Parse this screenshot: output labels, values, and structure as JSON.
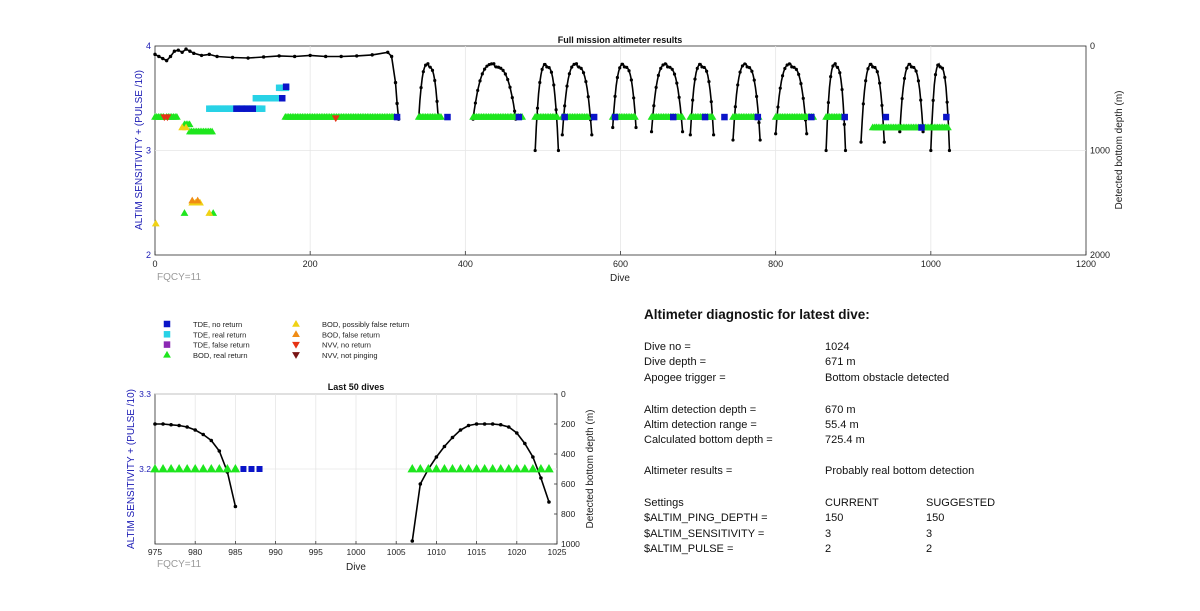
{
  "top_chart": {
    "title": "Full mission altimeter results",
    "xlabel": "Dive",
    "ylabel_left": "ALTIM SENSITIVITY + (PULSE /10)",
    "ylabel_right": "Detected bottom depth (m)",
    "note": "FQCY=11",
    "x_ticks": [
      "0",
      "200",
      "400",
      "600",
      "800",
      "1000",
      "1200"
    ],
    "y_left_ticks": [
      "2",
      "3",
      "4"
    ],
    "y_right_ticks": [
      "0",
      "1000",
      "2000"
    ]
  },
  "bottom_chart": {
    "title": "Last 50 dives",
    "xlabel": "Dive",
    "ylabel_left": "ALTIM SENSITIVITY + (PULSE /10)",
    "ylabel_right": "Detected bottom depth (m)",
    "note": "FQCY=11",
    "x_ticks": [
      "975",
      "980",
      "985",
      "990",
      "995",
      "1000",
      "1005",
      "1010",
      "1015",
      "1020",
      "1025"
    ],
    "y_left_ticks": [
      "3.2",
      "3.3"
    ],
    "y_right_ticks": [
      "0",
      "200",
      "400",
      "600",
      "800",
      "1000"
    ]
  },
  "legend": [
    {
      "label": "TDE, no return",
      "shape": "square",
      "color": "#0a14c8"
    },
    {
      "label": "TDE, real return",
      "shape": "square",
      "color": "#28d2e6"
    },
    {
      "label": "TDE, false return",
      "shape": "square",
      "color": "#8c28b4"
    },
    {
      "label": "BOD, real return",
      "shape": "triangle-up",
      "color": "#1ee61e"
    },
    {
      "label": "BOD, possibly false return",
      "shape": "triangle-up",
      "color": "#f0d214"
    },
    {
      "label": "BOD, false return",
      "shape": "triangle-up",
      "color": "#f08c14"
    },
    {
      "label": "NVV, no return",
      "shape": "triangle-down",
      "color": "#e63214"
    },
    {
      "label": "NVV, not pinging",
      "shape": "triangle-down",
      "color": "#781414"
    }
  ],
  "diagnostic": {
    "title": "Altimeter diagnostic for latest dive:",
    "dive_no_label": "Dive no =",
    "dive_no": "1024",
    "dive_depth_label": "Dive depth =",
    "dive_depth": "671 m",
    "apogee_label": "Apogee trigger =",
    "apogee": "Bottom obstacle detected",
    "det_depth_label": "Altim detection depth =",
    "det_depth": "670 m",
    "det_range_label": "Altim detection range =",
    "det_range": "55.4 m",
    "calc_label": "Calculated bottom depth =",
    "calc": "725.4 m",
    "results_label": "Altimeter results =",
    "results": "Probably real bottom detection",
    "settings_label": "Settings",
    "current_label": "CURRENT",
    "suggested_label": "SUGGESTED",
    "ping_label": "$ALTIM_PING_DEPTH =",
    "ping_cur": "150",
    "ping_sug": "150",
    "sens_label": "$ALTIM_SENSITIVITY =",
    "sens_cur": "3",
    "sens_sug": "3",
    "pulse_label": "$ALTIM_PULSE =",
    "pulse_cur": "2",
    "pulse_sug": "2"
  },
  "chart_data": [
    {
      "type": "scatter",
      "title": "Full mission altimeter results",
      "xlabel": "Dive",
      "ylabel": "ALTIM SENSITIVITY + (PULSE /10)",
      "ylabel_right": "Detected bottom depth (m)",
      "xlim": [
        0,
        1200
      ],
      "ylim": [
        2,
        4
      ],
      "ylim_right": [
        2000,
        0
      ],
      "grid": true,
      "marker_series": [
        {
          "name": "BOD, real return",
          "segments": [
            [
              0,
              12,
              3.32
            ],
            [
              15,
              30,
              3.32
            ],
            [
              38,
              45,
              3.25
            ],
            [
              45,
              75,
              3.18
            ],
            [
              168,
              310,
              3.32
            ],
            [
              340,
              370,
              3.32
            ],
            [
              410,
              460,
              3.32
            ],
            [
              460,
              475,
              3.32
            ],
            [
              490,
              520,
              3.32
            ],
            [
              525,
              560,
              3.32
            ],
            [
              590,
              620,
              3.32
            ],
            [
              640,
              680,
              3.32
            ],
            [
              690,
              720,
              3.32
            ],
            [
              745,
              780,
              3.32
            ],
            [
              800,
              850,
              3.32
            ],
            [
              865,
              885,
              3.32
            ],
            [
              925,
              930,
              3.22
            ],
            [
              930,
              960,
              3.22
            ],
            [
              960,
              1000,
              3.22
            ],
            [
              1000,
              1024,
              3.22
            ]
          ],
          "points": [
            [
              38,
              2.4
            ],
            [
              75,
              2.4
            ]
          ]
        },
        {
          "name": "BOD, possibly false return",
          "points": [
            [
              1,
              2.3
            ],
            [
              35,
              3.22
            ],
            [
              40,
              3.22
            ],
            [
              48,
              2.5
            ],
            [
              52,
              2.5
            ],
            [
              58,
              2.5
            ],
            [
              70,
              2.4
            ]
          ]
        },
        {
          "name": "BOD, false return",
          "points": [
            [
              48,
              2.52
            ],
            [
              55,
              2.52
            ]
          ]
        },
        {
          "name": "NVV, no return",
          "points": [
            [
              12,
              3.32
            ],
            [
              16,
              3.32
            ],
            [
              233,
              3.31
            ]
          ]
        },
        {
          "name": "TDE, real return",
          "segments": [
            [
              70,
              140,
              3.4
            ],
            [
              130,
              160,
              3.5
            ],
            [
              160,
              170,
              3.6
            ]
          ]
        },
        {
          "name": "TDE, no return",
          "points": [
            [
              105,
              3.4
            ],
            [
              112,
              3.4
            ],
            [
              118,
              3.4
            ],
            [
              126,
              3.4
            ],
            [
              164,
              3.5
            ],
            [
              169,
              3.61
            ],
            [
              312,
              3.32
            ],
            [
              377,
              3.32
            ],
            [
              469,
              3.32
            ],
            [
              528,
              3.32
            ],
            [
              566,
              3.32
            ],
            [
              593,
              3.32
            ],
            [
              668,
              3.32
            ],
            [
              709,
              3.32
            ],
            [
              734,
              3.32
            ],
            [
              777,
              3.32
            ],
            [
              846,
              3.32
            ],
            [
              889,
              3.32
            ],
            [
              942,
              3.32
            ],
            [
              988,
              3.22
            ],
            [
              1020,
              3.32
            ]
          ]
        }
      ],
      "depth_series": {
        "name": "Detected bottom depth (m)",
        "continuous": [
          [
            0,
            80
          ],
          [
            5,
            100
          ],
          [
            10,
            120
          ],
          [
            15,
            140
          ],
          [
            20,
            100
          ],
          [
            25,
            50
          ],
          [
            30,
            40
          ],
          [
            35,
            60
          ],
          [
            40,
            30
          ],
          [
            45,
            50
          ],
          [
            50,
            70
          ],
          [
            60,
            90
          ],
          [
            70,
            80
          ],
          [
            80,
            100
          ],
          [
            100,
            110
          ],
          [
            120,
            115
          ],
          [
            140,
            105
          ],
          [
            160,
            95
          ],
          [
            180,
            100
          ],
          [
            200,
            90
          ],
          [
            220,
            100
          ],
          [
            240,
            100
          ],
          [
            260,
            95
          ],
          [
            280,
            85
          ],
          [
            300,
            60
          ],
          [
            305,
            100
          ],
          [
            310,
            350
          ],
          [
            312,
            550
          ],
          [
            314,
            700
          ]
        ],
        "arches": [
          [
            340,
            365,
            680
          ],
          [
            410,
            465,
            700
          ],
          [
            490,
            520,
            1000
          ],
          [
            525,
            563,
            850
          ],
          [
            590,
            620,
            780
          ],
          [
            640,
            680,
            820
          ],
          [
            690,
            720,
            850
          ],
          [
            745,
            780,
            900
          ],
          [
            800,
            840,
            840
          ],
          [
            865,
            890,
            1000
          ],
          [
            910,
            940,
            920
          ],
          [
            960,
            990,
            820
          ],
          [
            1000,
            1024,
            1000
          ]
        ]
      }
    },
    {
      "type": "scatter",
      "title": "Last 50 dives",
      "xlabel": "Dive",
      "ylabel": "ALTIM SENSITIVITY + (PULSE /10)",
      "ylabel_right": "Detected bottom depth (m)",
      "xlim": [
        975,
        1025
      ],
      "ylim": [
        3.1,
        3.3
      ],
      "ylim_right": [
        1000,
        0
      ],
      "grid": true,
      "bod_real_return_x": [
        975,
        976,
        977,
        978,
        979,
        980,
        981,
        982,
        983,
        984,
        985,
        1007,
        1008,
        1009,
        1010,
        1011,
        1012,
        1013,
        1014,
        1015,
        1016,
        1017,
        1018,
        1019,
        1020,
        1021,
        1022,
        1023,
        1024
      ],
      "bod_real_return_y": 3.2,
      "tde_no_return_x": [
        986,
        987,
        988
      ],
      "tde_no_return_y": 3.2,
      "depth_x": [
        975,
        976,
        977,
        978,
        979,
        980,
        981,
        982,
        983,
        984,
        985,
        1007,
        1008,
        1009,
        1010,
        1011,
        1012,
        1013,
        1014,
        1015,
        1016,
        1017,
        1018,
        1019,
        1020,
        1021,
        1022,
        1023,
        1024
      ],
      "depth_y": [
        200,
        200,
        205,
        210,
        220,
        240,
        270,
        310,
        380,
        520,
        750,
        980,
        600,
        500,
        420,
        350,
        290,
        240,
        210,
        200,
        200,
        200,
        205,
        220,
        260,
        330,
        420,
        560,
        720
      ]
    }
  ]
}
